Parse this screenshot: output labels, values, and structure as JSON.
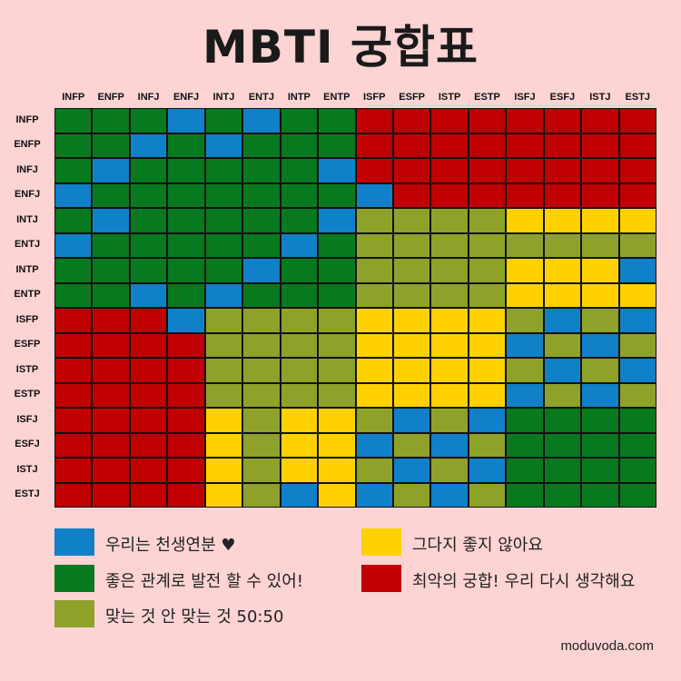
{
  "title": "MBTI 궁합표",
  "source": "moduvoda.com",
  "colors": {
    "blue": "#1080c8",
    "green": "#07791e",
    "olive": "#8ea22a",
    "yellow": "#ffd100",
    "red": "#c00000"
  },
  "legend": [
    {
      "key": "blue",
      "label": "우리는 천생연분 ♥"
    },
    {
      "key": "yellow",
      "label": "그다지 좋지 않아요"
    },
    {
      "key": "green",
      "label": "좋은 관계로 발전 할 수 있어!"
    },
    {
      "key": "red",
      "label": "최악의 궁합! 우리 다시 생각해요"
    },
    {
      "key": "olive",
      "label": "맞는 것 안 맞는 것 50:50"
    }
  ],
  "chart_data": {
    "type": "heatmap",
    "columns": [
      "INFP",
      "ENFP",
      "INFJ",
      "ENFJ",
      "INTJ",
      "ENTJ",
      "INTP",
      "ENTP",
      "ISFP",
      "ESFP",
      "ISTP",
      "ESTP",
      "ISFJ",
      "ESFJ",
      "ISTJ",
      "ESTJ"
    ],
    "rows": [
      "INFP",
      "ENFP",
      "INFJ",
      "ENFJ",
      "INTJ",
      "ENTJ",
      "INTP",
      "ENTP",
      "ISFP",
      "ESFP",
      "ISTP",
      "ESTP",
      "ISFJ",
      "ESFJ",
      "ISTJ",
      "ESTJ"
    ],
    "cells": [
      [
        "green",
        "green",
        "green",
        "blue",
        "green",
        "blue",
        "green",
        "green",
        "red",
        "red",
        "red",
        "red",
        "red",
        "red",
        "red",
        "red"
      ],
      [
        "green",
        "green",
        "blue",
        "green",
        "blue",
        "green",
        "green",
        "green",
        "red",
        "red",
        "red",
        "red",
        "red",
        "red",
        "red",
        "red"
      ],
      [
        "green",
        "blue",
        "green",
        "green",
        "green",
        "green",
        "green",
        "blue",
        "red",
        "red",
        "red",
        "red",
        "red",
        "red",
        "red",
        "red"
      ],
      [
        "blue",
        "green",
        "green",
        "green",
        "green",
        "green",
        "green",
        "green",
        "blue",
        "red",
        "red",
        "red",
        "red",
        "red",
        "red",
        "red"
      ],
      [
        "green",
        "blue",
        "green",
        "green",
        "green",
        "green",
        "green",
        "blue",
        "olive",
        "olive",
        "olive",
        "olive",
        "yellow",
        "yellow",
        "yellow",
        "yellow"
      ],
      [
        "blue",
        "green",
        "green",
        "green",
        "green",
        "green",
        "blue",
        "green",
        "olive",
        "olive",
        "olive",
        "olive",
        "olive",
        "olive",
        "olive",
        "olive"
      ],
      [
        "green",
        "green",
        "green",
        "green",
        "green",
        "blue",
        "green",
        "green",
        "olive",
        "olive",
        "olive",
        "olive",
        "yellow",
        "yellow",
        "yellow",
        "blue"
      ],
      [
        "green",
        "green",
        "blue",
        "green",
        "blue",
        "green",
        "green",
        "green",
        "olive",
        "olive",
        "olive",
        "olive",
        "yellow",
        "yellow",
        "yellow",
        "yellow"
      ],
      [
        "red",
        "red",
        "red",
        "blue",
        "olive",
        "olive",
        "olive",
        "olive",
        "yellow",
        "yellow",
        "yellow",
        "yellow",
        "olive",
        "blue",
        "olive",
        "blue"
      ],
      [
        "red",
        "red",
        "red",
        "red",
        "olive",
        "olive",
        "olive",
        "olive",
        "yellow",
        "yellow",
        "yellow",
        "yellow",
        "blue",
        "olive",
        "blue",
        "olive"
      ],
      [
        "red",
        "red",
        "red",
        "red",
        "olive",
        "olive",
        "olive",
        "olive",
        "yellow",
        "yellow",
        "yellow",
        "yellow",
        "olive",
        "blue",
        "olive",
        "blue"
      ],
      [
        "red",
        "red",
        "red",
        "red",
        "olive",
        "olive",
        "olive",
        "olive",
        "yellow",
        "yellow",
        "yellow",
        "yellow",
        "blue",
        "olive",
        "blue",
        "olive"
      ],
      [
        "red",
        "red",
        "red",
        "red",
        "yellow",
        "olive",
        "yellow",
        "yellow",
        "olive",
        "blue",
        "olive",
        "blue",
        "green",
        "green",
        "green",
        "green"
      ],
      [
        "red",
        "red",
        "red",
        "red",
        "yellow",
        "olive",
        "yellow",
        "yellow",
        "blue",
        "olive",
        "blue",
        "olive",
        "green",
        "green",
        "green",
        "green"
      ],
      [
        "red",
        "red",
        "red",
        "red",
        "yellow",
        "olive",
        "yellow",
        "yellow",
        "olive",
        "blue",
        "olive",
        "blue",
        "green",
        "green",
        "green",
        "green"
      ],
      [
        "red",
        "red",
        "red",
        "red",
        "yellow",
        "olive",
        "blue",
        "yellow",
        "blue",
        "olive",
        "blue",
        "olive",
        "green",
        "green",
        "green",
        "green"
      ]
    ]
  }
}
